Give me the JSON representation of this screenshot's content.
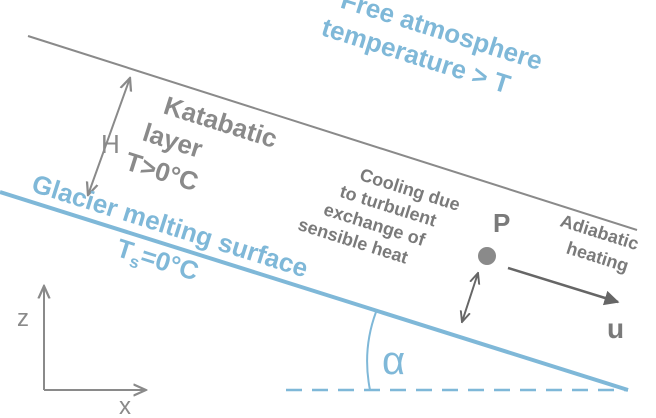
{
  "labels": {
    "free_atmosphere_line1": "Free atmosphere",
    "free_atmosphere_line2": "temperature > T",
    "katabatic_line1": "Katabatic",
    "katabatic_line2": "layer",
    "katabatic_line3": "T>0°C",
    "height": "H",
    "glacier_surface": "Glacier melting surface",
    "surface_temp_main": "T",
    "surface_temp_sub": "s",
    "surface_temp_rest": "=0°C",
    "cooling_line1": "Cooling due",
    "cooling_line2": "to turbulent",
    "cooling_line3": "exchange of",
    "cooling_line4": "sensible heat",
    "point": "P",
    "adiabatic_line1": "Adiabatic",
    "adiabatic_line2": "heating",
    "velocity": "u",
    "angle": "α",
    "axis_z": "z",
    "axis_x": "x"
  },
  "colors": {
    "blue": "#7fb8d8",
    "gray": "#8a8a8a",
    "dark_gray": "#666666"
  }
}
